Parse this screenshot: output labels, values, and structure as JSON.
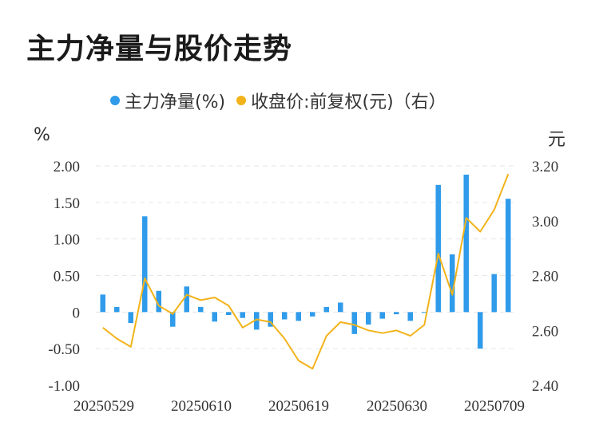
{
  "title": "主力净量与股价走势",
  "legend": [
    {
      "label": "主力净量(%)",
      "color": "#2f9bea"
    },
    {
      "label": "收盘价:前复权(元)（右）",
      "color": "#f2b31a"
    }
  ],
  "units": {
    "left": "%",
    "right": "元"
  },
  "chart_data": {
    "type": "bar+line",
    "x_labels": [
      "20250529",
      "20250610",
      "20250619",
      "20250630",
      "20250709"
    ],
    "left_axis": {
      "ticks": [
        "2.00",
        "1.50",
        "1.00",
        "0.50",
        "0",
        "-0.50",
        "-1.00"
      ],
      "min": -1.0,
      "max": 2.0
    },
    "right_axis": {
      "ticks": [
        "3.20",
        "3.00",
        "2.80",
        "2.60",
        "2.40"
      ],
      "min": 2.4,
      "max": 3.2
    },
    "series": [
      {
        "name": "主力净量(%)",
        "type": "bar",
        "color": "#2f9bea",
        "values": [
          0.24,
          0.07,
          -0.15,
          1.31,
          0.29,
          -0.2,
          0.35,
          0.07,
          -0.13,
          -0.04,
          -0.08,
          -0.24,
          -0.2,
          -0.1,
          -0.12,
          -0.06,
          0.07,
          0.13,
          -0.3,
          -0.17,
          -0.09,
          -0.03,
          -0.12,
          -0.01,
          1.74,
          0.79,
          1.88,
          -0.5,
          0.52,
          1.55
        ]
      },
      {
        "name": "收盘价:前复权(元)（右）",
        "type": "line",
        "color": "#f2b31a",
        "values": [
          2.61,
          2.57,
          2.54,
          2.79,
          2.69,
          2.66,
          2.73,
          2.71,
          2.72,
          2.69,
          2.61,
          2.64,
          2.63,
          2.57,
          2.49,
          2.46,
          2.58,
          2.63,
          2.62,
          2.6,
          2.59,
          2.6,
          2.58,
          2.62,
          2.88,
          2.73,
          3.01,
          2.96,
          3.04,
          3.17
        ]
      }
    ]
  }
}
